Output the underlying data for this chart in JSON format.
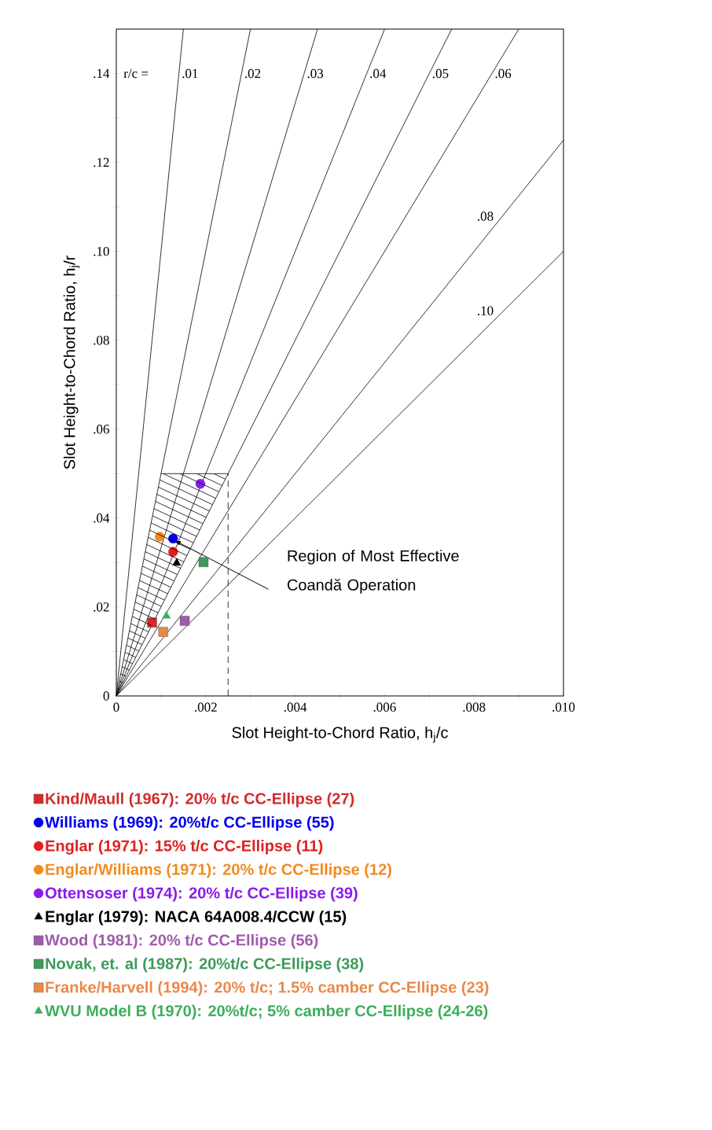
{
  "chart_data": {
    "type": "scatter",
    "xlabel": "Slot Height-to-Chord Ratio, h$_{j}$/c",
    "ylabel": "Slot Height-to-Chord Ratio, h$_{j}$/r",
    "xlim": [
      0,
      0.01
    ],
    "ylim": [
      0,
      0.15
    ],
    "xticks": [
      0,
      {
        "value": 0.001,
        "label": null
      },
      {
        "value": 0.002,
        "label": ".002"
      },
      {
        "value": 0.003,
        "label": null
      },
      {
        "value": 0.004,
        "label": ".004"
      },
      {
        "value": 0.005,
        "label": null
      },
      {
        "value": 0.006,
        "label": ".006"
      },
      {
        "value": 0.007,
        "label": null
      },
      {
        "value": 0.008,
        "label": ".008"
      },
      {
        "value": 0.009,
        "label": null
      },
      {
        "value": 0.01,
        "label": ".010"
      }
    ],
    "yticks": [
      0,
      {
        "value": 0.01,
        "label": null
      },
      {
        "value": 0.02,
        "label": ".02"
      },
      {
        "value": 0.03,
        "label": null
      },
      {
        "value": 0.04,
        "label": ".04"
      },
      {
        "value": 0.05,
        "label": null
      },
      {
        "value": 0.06,
        "label": ".06"
      },
      {
        "value": 0.07,
        "label": null
      },
      {
        "value": 0.08,
        "label": ".08"
      },
      {
        "value": 0.09,
        "label": null
      },
      {
        "value": 0.1,
        "label": ".10"
      },
      {
        "value": 0.11,
        "label": null
      },
      {
        "value": 0.12,
        "label": ".12"
      },
      {
        "value": 0.13,
        "label": null
      },
      {
        "value": 0.14,
        "label": ".14"
      }
    ],
    "grid": false,
    "legend": "bottom",
    "annotations": [
      "r/c =",
      {
        "text": "Region of Most Effective Coandă Operation",
        "x": 0.0013,
        "y": 0.035
      }
    ],
    "series": [
      {
        "type": "line",
        "x": [
          0.001,
          0.0025
        ],
        "values": [
          0.05,
          0.05
        ],
        "color": "#000000"
      },
      {
        "type": "line",
        "line_style": "dashed",
        "x": [
          0.0025,
          0.0025
        ],
        "values": [
          0,
          0.05
        ],
        "color": "#000000"
      },
      {
        "type": "line",
        "name": ".01",
        "x": [
          0,
          0.0015
        ],
        "values": [
          0,
          0.15
        ],
        "color": "#000000"
      },
      {
        "type": "line",
        "name": ".02",
        "x": [
          0,
          0.003
        ],
        "values": [
          0,
          0.15
        ],
        "color": "#000000"
      },
      {
        "type": "line",
        "name": ".03",
        "x": [
          0,
          0.0045
        ],
        "values": [
          0,
          0.15
        ],
        "color": "#000000"
      },
      {
        "type": "line",
        "name": ".04",
        "x": [
          0,
          0.006
        ],
        "values": [
          0,
          0.15
        ],
        "color": "#000000"
      },
      {
        "type": "line",
        "name": ".05",
        "x": [
          0,
          0.0075
        ],
        "values": [
          0,
          0.15
        ],
        "color": "#000000"
      },
      {
        "type": "line",
        "name": ".06",
        "x": [
          0,
          0.009
        ],
        "values": [
          0,
          0.15
        ],
        "color": "#000000"
      },
      {
        "type": "line",
        "name": ".08",
        "x": [
          0,
          0.01
        ],
        "values": [
          0,
          0.125
        ],
        "color": "#000000"
      },
      {
        "type": "line",
        "name": ".10",
        "x": [
          0,
          0.01
        ],
        "values": [
          0,
          0.1
        ],
        "color": "#000000"
      },
      {
        "name": "Kind/Maull (1967): 20% t/c  CC-Ellipse  (27)",
        "marker": "square",
        "color": "#d12b2b",
        "x": [
          0.0008
        ],
        "values": [
          0.0165
        ]
      },
      {
        "name": "Williams (1969): 20%t/c CC-Ellipse (55)",
        "marker": "circle",
        "color": "#0000ee",
        "x": [
          0.00127
        ],
        "values": [
          0.0354
        ]
      },
      {
        "name": "Englar (1971):  15% t/c CC-Ellipse (11)",
        "marker": "circle",
        "color": "#e02020",
        "x": [
          0.00127
        ],
        "values": [
          0.0324
        ]
      },
      {
        "name": "Englar/Williams (1971): 20% t/c  CC-Ellipse (12)",
        "marker": "circle",
        "color": "#f28a1e",
        "x": [
          0.00097
        ],
        "values": [
          0.0358
        ]
      },
      {
        "name": "Ottensoser (1974): 20% t/c   CC-Ellipse (39)",
        "marker": "circle",
        "color": "#8b1aee",
        "x": [
          0.00188
        ],
        "values": [
          0.0477
        ]
      },
      {
        "name": "Englar (1979): NACA 64A008.4/CCW (15)",
        "marker": "triangle",
        "color": "#000000",
        "x": [
          0.00135
        ],
        "values": [
          0.0299
        ]
      },
      {
        "name": "Wood (1981): 20% t/c   CC-Ellipse (56)",
        "marker": "square",
        "color": "#a05aae",
        "x": [
          0.00153
        ],
        "values": [
          0.0169
        ]
      },
      {
        "name": "Novak, et. al (1987): 20%t/c  CC-Ellipse  (38)",
        "marker": "square",
        "color": "#3c9a5a",
        "x": [
          0.00195
        ],
        "values": [
          0.0301
        ]
      },
      {
        "name": "Franke/Harvell (1994): 20% t/c; 1.5% camber  CC-Ellipse (23)",
        "marker": "square",
        "color": "#e8894a",
        "x": [
          0.00105
        ],
        "values": [
          0.0144
        ]
      },
      {
        "name": "WVU Model B (1970): 20%t/c; 5% camber CC-Ellipse (24-26)",
        "marker": "triangle",
        "color": "#3cae5a",
        "x": [
          0.00112
        ],
        "values": [
          0.018
        ]
      }
    ]
  }
}
